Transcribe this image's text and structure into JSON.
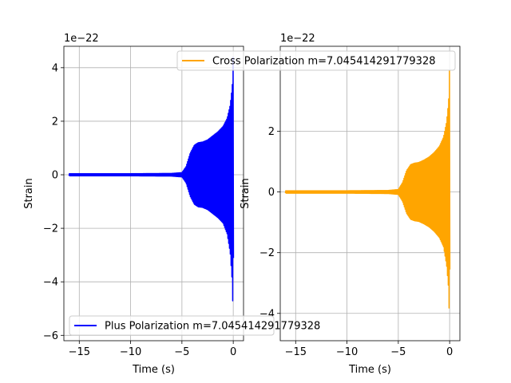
{
  "chart_data": [
    {
      "type": "line",
      "xlabel": "Time (s)",
      "ylabel": "Strain",
      "scale_label": "1e−22",
      "xlim": [
        -16.5,
        1.0
      ],
      "ylim": [
        -6.2,
        4.8
      ],
      "xticks": [
        -15,
        -10,
        -5,
        0
      ],
      "xtick_labels": [
        "−15",
        "−10",
        "−5",
        "0"
      ],
      "yticks": [
        -6,
        -4,
        -2,
        0,
        2,
        4
      ],
      "ytick_labels": [
        "−6",
        "−4",
        "−2",
        "0",
        "2",
        "4"
      ],
      "grid": true,
      "legend_position": "lower-left",
      "series": [
        {
          "name": "Plus Polarization m=7.045414291779328",
          "color": "#0000ff",
          "envelope": {
            "t": [
              -16,
              -10,
              -6,
              -5,
              -4.6,
              -4.2,
              -3.8,
              -3.4,
              -3.0,
              -2.5,
              -2.0,
              -1.5,
              -1.0,
              -0.6,
              -0.3,
              -0.1,
              0.0,
              0.05
            ],
            "upper": [
              0.04,
              0.04,
              0.05,
              0.08,
              0.3,
              0.8,
              1.1,
              1.2,
              1.22,
              1.3,
              1.45,
              1.6,
              1.8,
              2.1,
              2.6,
              3.3,
              4.6,
              0.0
            ],
            "lower": [
              -0.04,
              -0.04,
              -0.05,
              -0.08,
              -0.3,
              -0.8,
              -1.1,
              -1.2,
              -1.22,
              -1.3,
              -1.45,
              -1.6,
              -1.8,
              -2.2,
              -2.9,
              -4.0,
              -5.6,
              0.0
            ]
          }
        }
      ]
    },
    {
      "type": "line",
      "xlabel": "Time (s)",
      "ylabel": "Strain",
      "scale_label": "1e−22",
      "xlim": [
        -16.5,
        1.0
      ],
      "ylim": [
        -4.9,
        4.8
      ],
      "xticks": [
        -15,
        -10,
        -5,
        0
      ],
      "xtick_labels": [
        "−15",
        "−10",
        "−5",
        "0"
      ],
      "yticks": [
        -4,
        -2,
        0,
        2
      ],
      "ytick_labels": [
        "−4",
        "−2",
        "0",
        "2"
      ],
      "grid": true,
      "legend_position": "upper-right",
      "series": [
        {
          "name": "Cross Polarization m=7.045414291779328",
          "color": "#ffa500",
          "envelope": {
            "t": [
              -16,
              -10,
              -6,
              -5,
              -4.6,
              -4.2,
              -3.8,
              -3.4,
              -3.0,
              -2.5,
              -2.0,
              -1.5,
              -1.0,
              -0.6,
              -0.3,
              -0.1,
              0.0,
              0.05
            ],
            "upper": [
              0.04,
              0.04,
              0.05,
              0.08,
              0.3,
              0.7,
              0.9,
              0.95,
              0.97,
              1.05,
              1.15,
              1.3,
              1.5,
              1.8,
              2.3,
              3.0,
              4.2,
              0.0
            ],
            "lower": [
              -0.04,
              -0.04,
              -0.05,
              -0.08,
              -0.3,
              -0.7,
              -0.9,
              -0.95,
              -0.97,
              -1.05,
              -1.15,
              -1.3,
              -1.5,
              -1.8,
              -2.4,
              -3.2,
              -4.6,
              0.0
            ]
          }
        }
      ]
    }
  ]
}
